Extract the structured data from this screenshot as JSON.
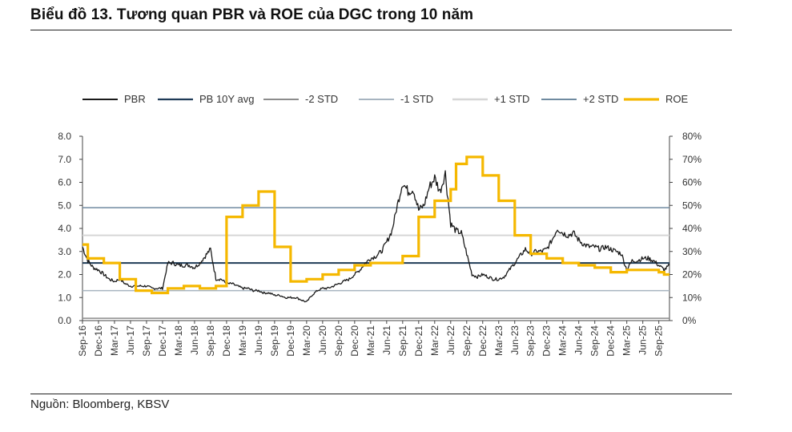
{
  "title": "Biểu đồ 13. Tương quan PBR và ROE của DGC trong 10 năm",
  "source": "Nguồn: Bloomberg, KBSV",
  "colors": {
    "pbr": "#1a1a1a",
    "pb_avg": "#1f3b57",
    "minus2": "#8c8c8c",
    "minus1": "#a7b4c0",
    "plus1": "#d6d6d6",
    "plus2": "#6f8aa0",
    "roe": "#f5b800"
  },
  "chart_data": {
    "type": "line",
    "x_tick_labels": [
      "Sep-16",
      "Dec-16",
      "Mar-17",
      "Jun-17",
      "Sep-17",
      "Dec-17",
      "Mar-18",
      "Jun-18",
      "Sep-18",
      "Dec-18",
      "Mar-19",
      "Jun-19",
      "Sep-19",
      "Dec-19",
      "Mar-20",
      "Jun-20",
      "Sep-20",
      "Dec-20",
      "Mar-21",
      "Jun-21",
      "Sep-21",
      "Dec-21",
      "Mar-22",
      "Jun-22",
      "Sep-22",
      "Dec-22",
      "Mar-23",
      "Jun-23",
      "Sep-23",
      "Dec-23",
      "Mar-24",
      "Jun-24",
      "Sep-24",
      "Dec-24",
      "Mar-25",
      "Jun-25",
      "Sep-25"
    ],
    "left_axis": {
      "ylim": [
        0,
        8
      ],
      "ticks": [
        "0.0",
        "1.0",
        "2.0",
        "3.0",
        "4.0",
        "5.0",
        "6.0",
        "7.0",
        "8.0"
      ]
    },
    "right_axis": {
      "ylim": [
        0,
        80
      ],
      "ticks": [
        "0%",
        "10%",
        "20%",
        "30%",
        "40%",
        "50%",
        "60%",
        "70%",
        "80%"
      ]
    },
    "legend": [
      "PBR",
      "PB 10Y avg",
      "-2 STD",
      "-1 STD",
      "+1 STD",
      "+2 STD",
      "ROE"
    ],
    "legend_position": "top",
    "series": [
      {
        "name": "PBR",
        "axis": "left",
        "points": [
          [
            "Sep-16",
            3.2
          ],
          [
            "Oct-16",
            2.6
          ],
          [
            "Nov-16",
            2.3
          ],
          [
            "Dec-16",
            2.2
          ],
          [
            "Jan-17",
            2.0
          ],
          [
            "Feb-17",
            1.8
          ],
          [
            "Mar-17",
            1.7
          ],
          [
            "Apr-17",
            1.8
          ],
          [
            "May-17",
            1.6
          ],
          [
            "Jun-17",
            1.5
          ],
          [
            "Jul-17",
            1.5
          ],
          [
            "Aug-17",
            1.5
          ],
          [
            "Sep-17",
            1.5
          ],
          [
            "Oct-17",
            1.4
          ],
          [
            "Nov-17",
            1.4
          ],
          [
            "Dec-17",
            1.4
          ],
          [
            "Jan-18",
            2.5
          ],
          [
            "Feb-18",
            2.5
          ],
          [
            "Mar-18",
            2.4
          ],
          [
            "Apr-18",
            2.4
          ],
          [
            "May-18",
            2.4
          ],
          [
            "Jun-18",
            2.3
          ],
          [
            "Jul-18",
            2.5
          ],
          [
            "Aug-18",
            2.8
          ],
          [
            "Sep-18",
            3.1
          ],
          [
            "Oct-18",
            1.8
          ],
          [
            "Nov-18",
            1.8
          ],
          [
            "Dec-18",
            1.6
          ],
          [
            "Jan-19",
            1.6
          ],
          [
            "Feb-19",
            1.5
          ],
          [
            "Mar-19",
            1.4
          ],
          [
            "Apr-19",
            1.4
          ],
          [
            "May-19",
            1.3
          ],
          [
            "Jun-19",
            1.3
          ],
          [
            "Jul-19",
            1.2
          ],
          [
            "Aug-19",
            1.2
          ],
          [
            "Sep-19",
            1.1
          ],
          [
            "Oct-19",
            1.1
          ],
          [
            "Nov-19",
            1.0
          ],
          [
            "Dec-19",
            1.0
          ],
          [
            "Jan-20",
            1.0
          ],
          [
            "Feb-20",
            0.9
          ],
          [
            "Mar-20",
            0.8
          ],
          [
            "Apr-20",
            1.1
          ],
          [
            "May-20",
            1.3
          ],
          [
            "Jun-20",
            1.4
          ],
          [
            "Jul-20",
            1.4
          ],
          [
            "Aug-20",
            1.5
          ],
          [
            "Sep-20",
            1.6
          ],
          [
            "Oct-20",
            1.7
          ],
          [
            "Nov-20",
            1.8
          ],
          [
            "Dec-20",
            2.0
          ],
          [
            "Jan-21",
            2.2
          ],
          [
            "Feb-21",
            2.5
          ],
          [
            "Mar-21",
            2.7
          ],
          [
            "Apr-21",
            2.8
          ],
          [
            "May-21",
            3.0
          ],
          [
            "Jun-21",
            3.4
          ],
          [
            "Jul-21",
            3.9
          ],
          [
            "Aug-21",
            5.0
          ],
          [
            "Sep-21",
            6.0
          ],
          [
            "Oct-21",
            5.6
          ],
          [
            "Nov-21",
            5.7
          ],
          [
            "Dec-21",
            4.8
          ],
          [
            "Jan-22",
            5.0
          ],
          [
            "Feb-22",
            5.8
          ],
          [
            "Mar-22",
            6.2
          ],
          [
            "Apr-22",
            5.6
          ],
          [
            "May-22",
            6.4
          ],
          [
            "Jun-22",
            4.2
          ],
          [
            "Jul-22",
            3.9
          ],
          [
            "Aug-22",
            3.8
          ],
          [
            "Sep-22",
            2.9
          ],
          [
            "Oct-22",
            2.0
          ],
          [
            "Nov-22",
            1.9
          ],
          [
            "Dec-22",
            2.0
          ],
          [
            "Jan-23",
            1.9
          ],
          [
            "Feb-23",
            1.8
          ],
          [
            "Mar-23",
            1.8
          ],
          [
            "Apr-23",
            1.9
          ],
          [
            "May-23",
            2.2
          ],
          [
            "Jun-23",
            2.5
          ],
          [
            "Jul-23",
            2.8
          ],
          [
            "Aug-23",
            3.1
          ],
          [
            "Sep-23",
            2.9
          ],
          [
            "Oct-23",
            3.0
          ],
          [
            "Nov-23",
            3.0
          ],
          [
            "Dec-23",
            3.1
          ],
          [
            "Jan-24",
            3.5
          ],
          [
            "Feb-24",
            4.0
          ],
          [
            "Mar-24",
            3.8
          ],
          [
            "Apr-24",
            3.7
          ],
          [
            "May-24",
            3.8
          ],
          [
            "Jun-24",
            3.5
          ],
          [
            "Jul-24",
            3.3
          ],
          [
            "Aug-24",
            3.2
          ],
          [
            "Sep-24",
            3.2
          ],
          [
            "Oct-24",
            3.1
          ],
          [
            "Nov-24",
            3.2
          ],
          [
            "Dec-24",
            3.1
          ],
          [
            "Jan-25",
            3.0
          ],
          [
            "Feb-25",
            2.9
          ],
          [
            "Mar-25",
            2.2
          ],
          [
            "Apr-25",
            2.6
          ],
          [
            "May-25",
            2.6
          ],
          [
            "Jun-25",
            2.7
          ],
          [
            "Jul-25",
            2.7
          ],
          [
            "Aug-25",
            2.6
          ],
          [
            "Sep-25",
            2.4
          ],
          [
            "Oct-25",
            2.2
          ],
          [
            "Nov-25",
            2.4
          ]
        ]
      },
      {
        "name": "PB 10Y avg",
        "axis": "left",
        "value": 2.5
      },
      {
        "name": "-2 STD",
        "axis": "left",
        "value": 0.1
      },
      {
        "name": "-1 STD",
        "axis": "left",
        "value": 1.3
      },
      {
        "name": "+1 STD",
        "axis": "left",
        "value": 3.7
      },
      {
        "name": "+2 STD",
        "axis": "left",
        "value": 4.9
      },
      {
        "name": "ROE",
        "axis": "right",
        "step": true,
        "points": [
          [
            "Sep-16",
            33
          ],
          [
            "Oct-16",
            27
          ],
          [
            "Jan-17",
            25
          ],
          [
            "Apr-17",
            18
          ],
          [
            "Jul-17",
            13
          ],
          [
            "Oct-17",
            12
          ],
          [
            "Jan-18",
            14
          ],
          [
            "Apr-18",
            15
          ],
          [
            "Jul-18",
            14
          ],
          [
            "Oct-18",
            15
          ],
          [
            "Dec-18",
            45
          ],
          [
            "Mar-19",
            50
          ],
          [
            "Jun-19",
            56
          ],
          [
            "Sep-19",
            32
          ],
          [
            "Dec-19",
            17
          ],
          [
            "Mar-20",
            18
          ],
          [
            "Jun-20",
            20
          ],
          [
            "Sep-20",
            22
          ],
          [
            "Dec-20",
            24
          ],
          [
            "Mar-21",
            25
          ],
          [
            "Jun-21",
            25
          ],
          [
            "Sep-21",
            28
          ],
          [
            "Dec-21",
            45
          ],
          [
            "Mar-22",
            52
          ],
          [
            "Jun-22",
            57
          ],
          [
            "Jul-22",
            68
          ],
          [
            "Sep-22",
            71
          ],
          [
            "Dec-22",
            63
          ],
          [
            "Mar-23",
            52
          ],
          [
            "Jun-23",
            37
          ],
          [
            "Sep-23",
            29
          ],
          [
            "Dec-23",
            27
          ],
          [
            "Mar-24",
            25
          ],
          [
            "Jun-24",
            24
          ],
          [
            "Sep-24",
            23
          ],
          [
            "Dec-24",
            21
          ],
          [
            "Mar-25",
            22
          ],
          [
            "Jun-25",
            22
          ],
          [
            "Sep-25",
            21
          ],
          [
            "Oct-25",
            20
          ],
          [
            "Nov-25",
            20
          ]
        ]
      }
    ]
  }
}
